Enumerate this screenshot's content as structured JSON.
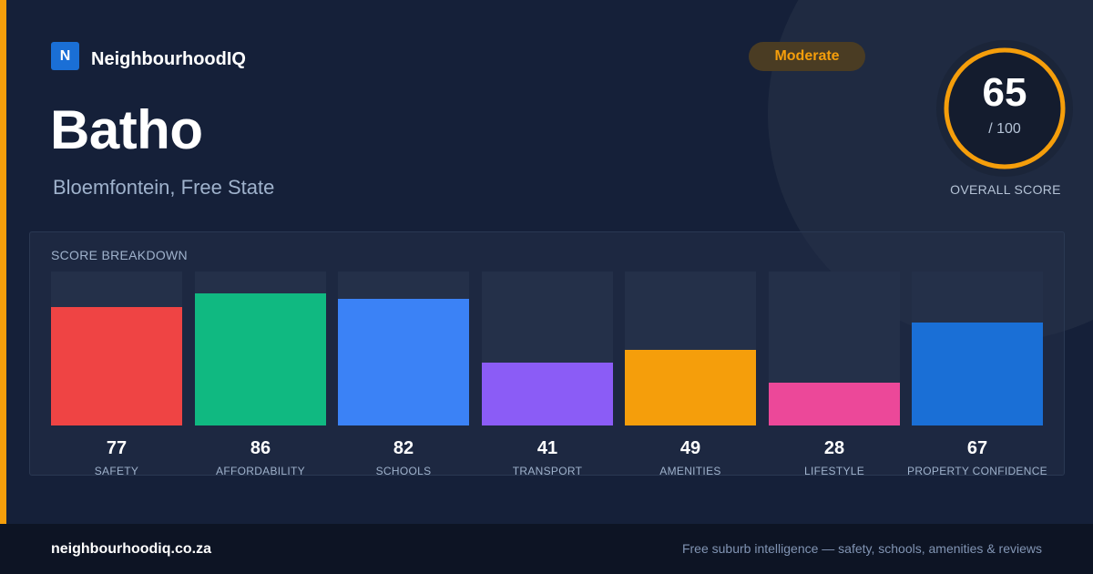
{
  "brand": {
    "logo_letter": "N",
    "name": "NeighbourhoodIQ"
  },
  "suburb": {
    "name": "Batho",
    "location": "Bloemfontein, Free State"
  },
  "rating": {
    "label": "Moderate",
    "color": "#f59e0b"
  },
  "overall": {
    "score": "65",
    "score_fraction": 0.65,
    "max": "/ 100",
    "label": "OVERALL SCORE"
  },
  "breakdown": {
    "title": "SCORE BREAKDOWN",
    "metrics": [
      {
        "label": "SAFETY",
        "value": "77",
        "score": 77,
        "color": "#ef4444"
      },
      {
        "label": "AFFORDABILITY",
        "value": "86",
        "score": 86,
        "color": "#10b981"
      },
      {
        "label": "SCHOOLS",
        "value": "82",
        "score": 82,
        "color": "#3b82f6"
      },
      {
        "label": "TRANSPORT",
        "value": "41",
        "score": 41,
        "color": "#8b5cf6"
      },
      {
        "label": "AMENITIES",
        "value": "49",
        "score": 49,
        "color": "#f59e0b"
      },
      {
        "label": "LIFESTYLE",
        "value": "28",
        "score": 28,
        "color": "#ec4899"
      },
      {
        "label": "PROPERTY CONFIDENCE",
        "value": "67",
        "score": 67,
        "color": "#1a6fd6"
      }
    ]
  },
  "footer": {
    "url": "neighbourhoodiq.co.za",
    "tagline": "Free suburb intelligence — safety, schools, amenities & reviews"
  }
}
